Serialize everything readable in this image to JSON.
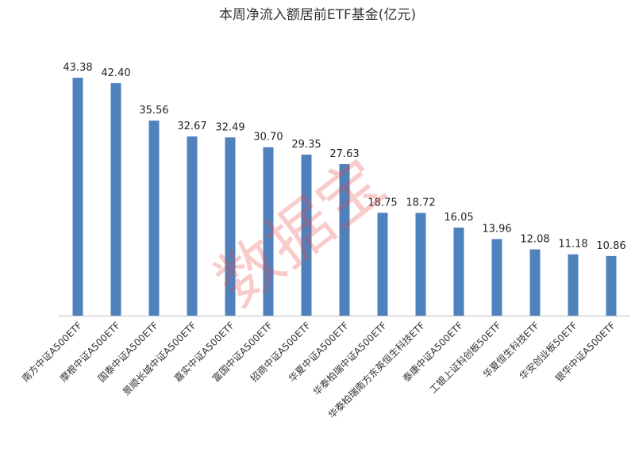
{
  "chart_data": {
    "type": "bar",
    "title": "本周净流入额居前ETF基金(亿元)",
    "categories": [
      "南方中证A500ETF",
      "摩根中证A500ETF",
      "国泰中证A500ETF",
      "景顺长城中证A500ETF",
      "嘉实中证A500ETF",
      "富国中证A500ETF",
      "招商中证A500ETF",
      "华夏中证A500ETF",
      "华泰柏瑞中证A500ETF",
      "华泰柏瑞南方东英恒生科技ETF",
      "泰康中证A500ETF",
      "工银上证科创板50ETF",
      "华夏恒生科技ETF",
      "华安创业板50ETF",
      "银华中证A500ETF"
    ],
    "values": [
      43.38,
      42.4,
      35.56,
      32.67,
      32.49,
      30.7,
      29.35,
      27.63,
      18.75,
      18.72,
      16.05,
      13.96,
      12.08,
      11.18,
      10.86
    ],
    "value_labels": [
      "43.38",
      "42.40",
      "35.56",
      "32.67",
      "32.49",
      "30.70",
      "29.35",
      "27.63",
      "18.75",
      "18.72",
      "16.05",
      "13.96",
      "12.08",
      "11.18",
      "10.86"
    ],
    "xlabel": "",
    "ylabel": "",
    "ylim": [
      0,
      43.38
    ],
    "grid": false,
    "legend": "none",
    "bar_color": "#4f81bd",
    "axis_color": "#bfbfbf"
  },
  "watermark": {
    "text": "数据宝",
    "color": "#e84646"
  }
}
